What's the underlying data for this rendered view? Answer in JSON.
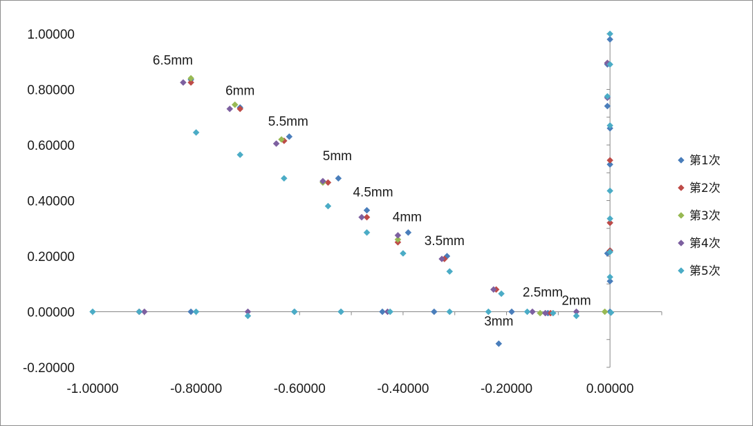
{
  "chart_data": {
    "type": "scatter",
    "title": "",
    "xlabel": "",
    "ylabel": "",
    "xlim": [
      -1.0,
      0.1
    ],
    "ylim": [
      -0.2,
      1.0
    ],
    "x_ticks": [
      "-1.00000",
      "-0.80000",
      "-0.60000",
      "-0.40000",
      "-0.20000",
      "0.00000"
    ],
    "y_ticks": [
      "1.00000",
      "0.80000",
      "0.60000",
      "0.40000",
      "0.20000",
      "0.00000",
      "-0.20000"
    ],
    "grid": false,
    "legend_position": "right",
    "annotations": [
      {
        "text": "6.5mm",
        "x": -0.845,
        "y": 0.89
      },
      {
        "text": "6mm",
        "x": -0.715,
        "y": 0.78
      },
      {
        "text": "5.5mm",
        "x": -0.622,
        "y": 0.67
      },
      {
        "text": "5mm",
        "x": -0.527,
        "y": 0.545
      },
      {
        "text": "4.5mm",
        "x": -0.458,
        "y": 0.415
      },
      {
        "text": "4mm",
        "x": -0.392,
        "y": 0.325
      },
      {
        "text": "3.5mm",
        "x": -0.32,
        "y": 0.24
      },
      {
        "text": "3mm",
        "x": -0.215,
        "y": -0.05
      },
      {
        "text": "2.5mm",
        "x": -0.13,
        "y": 0.055
      },
      {
        "text": "2mm",
        "x": -0.065,
        "y": 0.025
      }
    ],
    "series": [
      {
        "name": "第1次",
        "color": "#4a7ebb",
        "points": [
          [
            -1.0,
            0.0
          ],
          [
            -0.91,
            0.0
          ],
          [
            -0.81,
            0.0
          ],
          [
            -0.61,
            0.0
          ],
          [
            -0.52,
            0.0
          ],
          [
            -0.44,
            0.0
          ],
          [
            -0.34,
            0.0
          ],
          [
            -0.19,
            0.0
          ],
          [
            -0.005,
            0.21
          ],
          [
            0.0,
            0.22
          ],
          [
            0.0,
            0.11
          ],
          [
            0.0,
            0.0
          ],
          [
            -0.81,
            0.835
          ],
          [
            -0.715,
            0.735
          ],
          [
            -0.62,
            0.63
          ],
          [
            -0.525,
            0.48
          ],
          [
            -0.47,
            0.365
          ],
          [
            -0.39,
            0.285
          ],
          [
            -0.315,
            0.2
          ],
          [
            -0.215,
            -0.115
          ],
          [
            -0.12,
            -0.005
          ],
          [
            -0.005,
            0.74
          ],
          [
            -0.005,
            0.89
          ],
          [
            0.0,
            0.98
          ],
          [
            0.0,
            0.66
          ],
          [
            0.0,
            0.53
          ],
          [
            0.0,
            0.32
          ]
        ]
      },
      {
        "name": "第2次",
        "color": "#be4b48",
        "points": [
          [
            -0.91,
            0.0
          ],
          [
            -0.81,
            0.825
          ],
          [
            -0.715,
            0.73
          ],
          [
            -0.63,
            0.615
          ],
          [
            -0.545,
            0.465
          ],
          [
            -0.47,
            0.34
          ],
          [
            -0.41,
            0.25
          ],
          [
            -0.32,
            0.19
          ],
          [
            -0.22,
            0.08
          ],
          [
            -0.115,
            -0.005
          ],
          [
            -0.005,
            0.895
          ],
          [
            0.0,
            0.545
          ],
          [
            0.0,
            0.32
          ],
          [
            0.0,
            0.22
          ]
        ]
      },
      {
        "name": "第3次",
        "color": "#98b954",
        "points": [
          [
            -0.81,
            0.84
          ],
          [
            -0.725,
            0.745
          ],
          [
            -0.635,
            0.62
          ],
          [
            -0.555,
            0.465
          ],
          [
            -0.41,
            0.26
          ],
          [
            -0.135,
            -0.005
          ],
          [
            -0.01,
            0.0
          ]
        ]
      },
      {
        "name": "第4次",
        "color": "#7d60a0",
        "points": [
          [
            -0.9,
            0.0
          ],
          [
            -0.7,
            0.0
          ],
          [
            -0.43,
            0.0
          ],
          [
            -0.15,
            0.0
          ],
          [
            -0.065,
            0.0
          ],
          [
            -0.825,
            0.825
          ],
          [
            -0.735,
            0.73
          ],
          [
            -0.645,
            0.605
          ],
          [
            -0.555,
            0.47
          ],
          [
            -0.48,
            0.34
          ],
          [
            -0.41,
            0.275
          ],
          [
            -0.325,
            0.19
          ],
          [
            -0.225,
            0.08
          ],
          [
            -0.125,
            -0.005
          ],
          [
            -0.005,
            0.895
          ],
          [
            -0.005,
            0.77
          ]
        ]
      },
      {
        "name": "第5次",
        "color": "#4bacc6",
        "points": [
          [
            -1.0,
            0.0
          ],
          [
            -0.91,
            0.0
          ],
          [
            -0.8,
            0.0
          ],
          [
            -0.61,
            0.0
          ],
          [
            -0.52,
            0.0
          ],
          [
            -0.425,
            0.0
          ],
          [
            -0.31,
            0.0
          ],
          [
            -0.235,
            0.0
          ],
          [
            -0.16,
            0.0
          ],
          [
            -0.11,
            -0.005
          ],
          [
            0.002,
            -0.003
          ],
          [
            -0.7,
            -0.015
          ],
          [
            -0.065,
            -0.015
          ],
          [
            -0.8,
            0.645
          ],
          [
            -0.715,
            0.565
          ],
          [
            -0.63,
            0.48
          ],
          [
            -0.545,
            0.38
          ],
          [
            -0.47,
            0.285
          ],
          [
            -0.4,
            0.21
          ],
          [
            -0.31,
            0.145
          ],
          [
            -0.21,
            0.065
          ],
          [
            0.0,
            1.0
          ],
          [
            0.0,
            0.89
          ],
          [
            -0.005,
            0.775
          ],
          [
            0.0,
            0.67
          ],
          [
            0.0,
            0.435
          ],
          [
            0.0,
            0.335
          ],
          [
            0.0,
            0.215
          ],
          [
            0.0,
            0.125
          ]
        ]
      }
    ]
  }
}
